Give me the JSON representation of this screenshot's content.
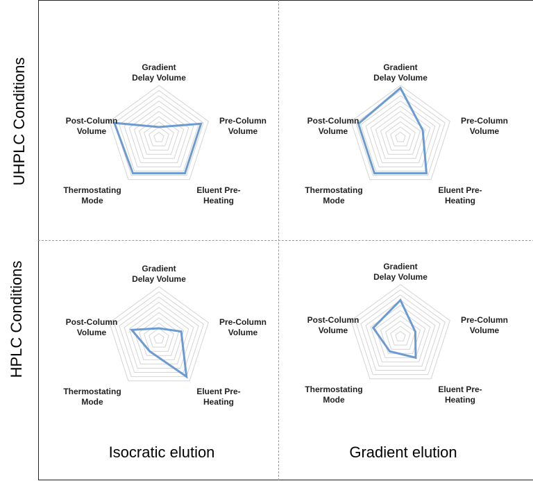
{
  "row_labels": [
    "UHPLC Conditions",
    "HPLC Conditions"
  ],
  "column_labels": [
    "Isocratic elution",
    "Gradient elution"
  ],
  "chart_data": [
    {
      "type": "radar",
      "row": "UHPLC Conditions",
      "column": "Isocratic elution",
      "axes": [
        "Gradient Delay Volume",
        "Pre-Column Volume",
        "Eluent Pre-Heating",
        "Thermostating Mode",
        "Post-Column Volume"
      ],
      "values": [
        0.2,
        0.85,
        0.85,
        0.85,
        0.9
      ],
      "rmax": 1,
      "rings": 10,
      "series_color": "#6b9bd2"
    },
    {
      "type": "radar",
      "row": "UHPLC Conditions",
      "column": "Gradient elution",
      "axes": [
        "Gradient Delay Volume",
        "Pre-Column Volume",
        "Eluent Pre-Heating",
        "Thermostating Mode",
        "Post-Column Volume"
      ],
      "values": [
        0.95,
        0.45,
        0.85,
        0.85,
        0.85
      ],
      "rmax": 1,
      "rings": 10,
      "series_color": "#6b9bd2"
    },
    {
      "type": "radar",
      "row": "HPLC Conditions",
      "column": "Isocratic elution",
      "axes": [
        "Gradient Delay Volume",
        "Pre-Column Volume",
        "Eluent Pre-Heating",
        "Thermostating Mode",
        "Post-Column Volume"
      ],
      "values": [
        0.2,
        0.45,
        0.9,
        0.3,
        0.55
      ],
      "rmax": 1,
      "rings": 10,
      "series_color": "#6b9bd2"
    },
    {
      "type": "radar",
      "row": "HPLC Conditions",
      "column": "Gradient elution",
      "axes": [
        "Gradient Delay Volume",
        "Pre-Column Volume",
        "Eluent Pre-Heating",
        "Thermostating Mode",
        "Post-Column Volume"
      ],
      "values": [
        0.7,
        0.3,
        0.5,
        0.35,
        0.55
      ],
      "rmax": 1,
      "rings": 10,
      "series_color": "#6b9bd2"
    }
  ],
  "axis_label_lines": [
    [
      "Gradient",
      "Delay Volume"
    ],
    [
      "Pre-Column",
      "Volume"
    ],
    [
      "Eluent Pre-",
      "Heating"
    ],
    [
      "Thermostating",
      "Mode"
    ],
    [
      "Post-Column",
      "Volume"
    ]
  ]
}
